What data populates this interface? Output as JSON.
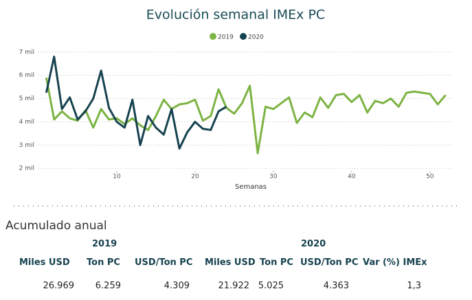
{
  "chart_data": {
    "type": "line",
    "title": "Evolución semanal IMEx PC",
    "x_label": "Semanas",
    "x": [
      1,
      2,
      3,
      4,
      5,
      6,
      7,
      8,
      9,
      10,
      11,
      12,
      13,
      14,
      15,
      16,
      17,
      18,
      19,
      20,
      21,
      22,
      23,
      24,
      25,
      26,
      27,
      28,
      29,
      30,
      31,
      32,
      33,
      34,
      35,
      36,
      37,
      38,
      39,
      40,
      41,
      42,
      43,
      44,
      45,
      46,
      47,
      48,
      49,
      50,
      51,
      52
    ],
    "series": [
      {
        "name": "2019",
        "color": "#7cb342",
        "values": [
          5.9,
          4.1,
          4.45,
          4.15,
          4.05,
          4.5,
          3.75,
          4.55,
          4.1,
          4.15,
          3.9,
          4.15,
          3.85,
          3.65,
          4.25,
          4.95,
          4.55,
          4.75,
          4.8,
          4.95,
          4.05,
          4.25,
          5.4,
          4.6,
          4.35,
          4.8,
          5.55,
          2.65,
          4.65,
          4.55,
          4.8,
          5.05,
          3.95,
          4.4,
          4.2,
          5.05,
          4.6,
          5.15,
          5.2,
          4.85,
          5.15,
          4.4,
          4.9,
          4.8,
          5.0,
          4.65,
          5.25,
          5.3,
          5.25,
          5.2,
          4.75,
          5.15
        ]
      },
      {
        "name": "2020",
        "color": "#16424f",
        "values": [
          5.25,
          6.8,
          4.55,
          5.05,
          4.1,
          4.45,
          5.0,
          6.2,
          4.6,
          4.0,
          3.75,
          4.95,
          3.0,
          4.25,
          3.75,
          3.45,
          4.55,
          2.85,
          3.55,
          4.0,
          3.7,
          3.65,
          4.45,
          4.65,
          null,
          null,
          null,
          null,
          null,
          null,
          null,
          null,
          null,
          null,
          null,
          null,
          null,
          null,
          null,
          null,
          null,
          null,
          null,
          null,
          null,
          null,
          null,
          null,
          null,
          null,
          null,
          null
        ]
      }
    ],
    "xlim": [
      0,
      53
    ],
    "xticks": [
      10,
      20,
      30,
      40,
      50
    ],
    "ylim": [
      1.8,
      7.2
    ],
    "yticks": [
      {
        "value": 2,
        "label": "2 mil"
      },
      {
        "value": 3,
        "label": "3 mil"
      },
      {
        "value": 4,
        "label": "4 mil"
      },
      {
        "value": 5,
        "label": "5 mil"
      },
      {
        "value": 6,
        "label": "6 mil"
      },
      {
        "value": 7,
        "label": "7 mil"
      }
    ],
    "grid": true,
    "legend": "top"
  },
  "table": {
    "title": "Acumulado anual",
    "groups": [
      "2019",
      "2020"
    ],
    "headers": [
      "Miles USD",
      "Ton PC",
      "USD/Ton PC",
      "Miles USD",
      "Ton PC",
      "USD/Ton PC",
      "Var (%) IMEx"
    ],
    "row": [
      "26.969",
      "6.259",
      "4.309",
      "21.922",
      "5.025",
      "4.363",
      "1,3"
    ]
  }
}
